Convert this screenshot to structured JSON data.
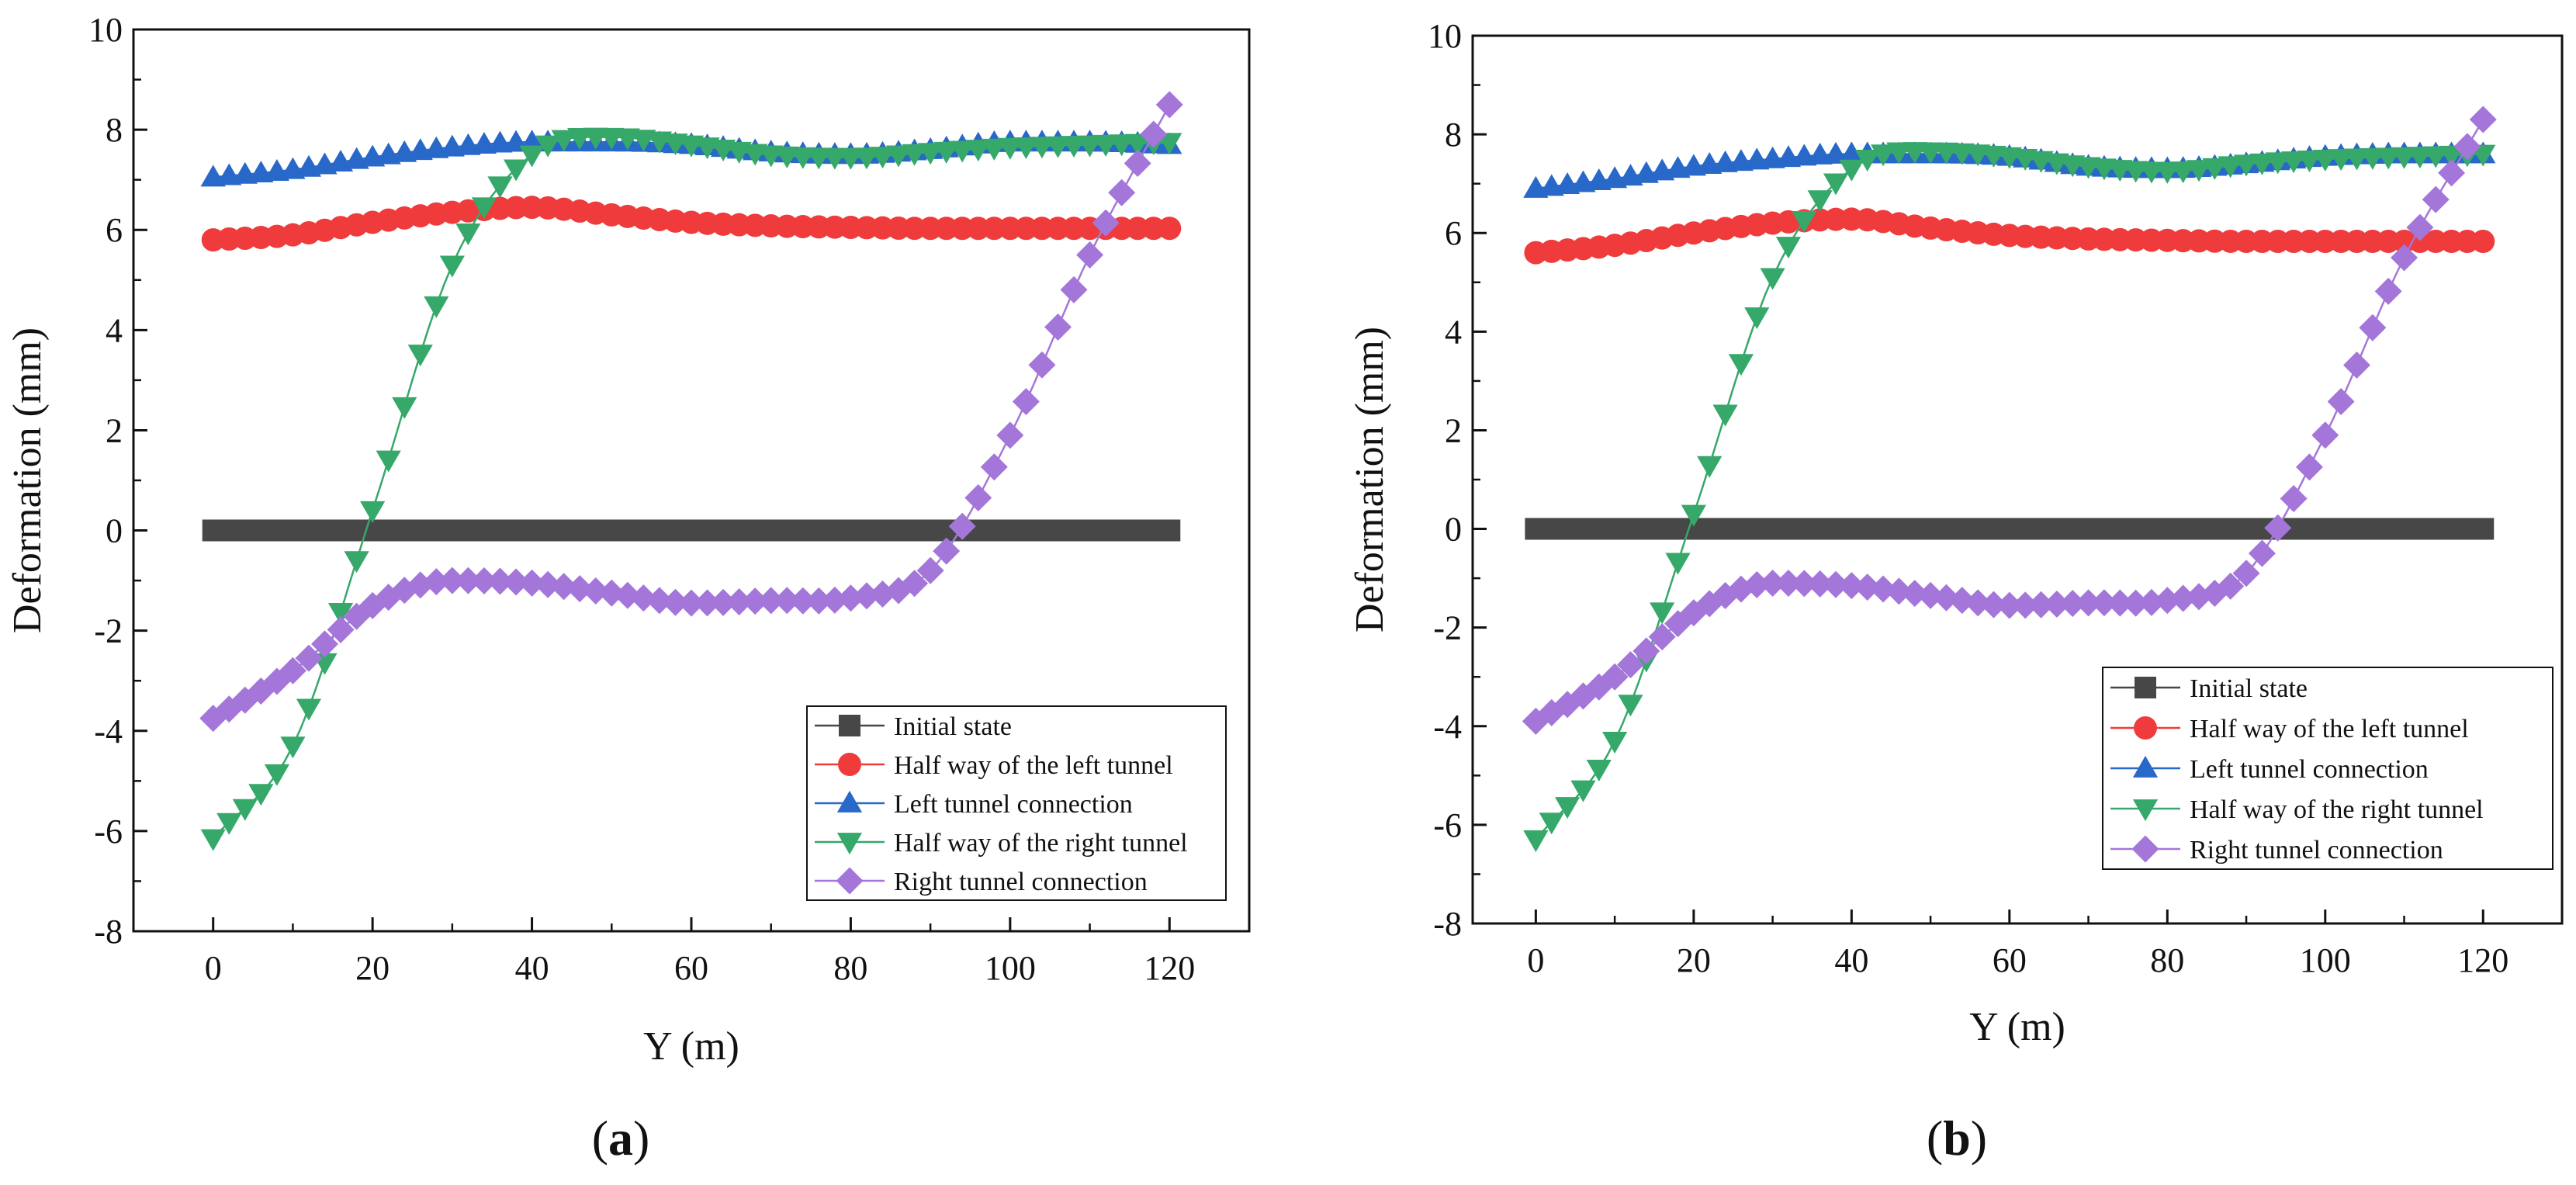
{
  "colors": {
    "initial": "#474747",
    "left_half": "#ef3b3b",
    "left_conn": "#2868c8",
    "right_half": "#35a86a",
    "right_conn": "#a476d9",
    "axis": "#111111"
  },
  "chart_data": [
    {
      "panel": "(a)",
      "panel_letter": "a",
      "type": "scatter",
      "title": "",
      "xlabel": "Y (m)",
      "ylabel": "Deformation (mm)",
      "xlim": [
        -10,
        130
      ],
      "ylim": [
        -8,
        10
      ],
      "xticks": [
        0,
        20,
        40,
        60,
        80,
        100,
        120
      ],
      "yticks": [
        -8,
        -6,
        -4,
        -2,
        0,
        2,
        4,
        6,
        8,
        10
      ],
      "legend_position": "bottom-right",
      "x": [
        0,
        10,
        20,
        30,
        40,
        50,
        60,
        70,
        80,
        90,
        100,
        110,
        120
      ],
      "series": [
        {
          "name": "Initial state",
          "marker": "square",
          "color_key": "initial",
          "values": [
            0,
            0,
            0,
            0,
            0,
            0,
            0,
            0,
            0,
            0,
            0,
            0,
            0
          ]
        },
        {
          "name": "Half way of the left tunnel",
          "marker": "circle",
          "color_key": "left_half",
          "values": [
            5.8,
            5.9,
            6.15,
            6.35,
            6.45,
            6.3,
            6.15,
            6.08,
            6.05,
            6.03,
            6.03,
            6.03,
            6.03
          ]
        },
        {
          "name": "Left tunnel connection",
          "marker": "triangle-up",
          "color_key": "left_conn",
          "values": [
            7.05,
            7.2,
            7.45,
            7.65,
            7.75,
            7.75,
            7.7,
            7.55,
            7.5,
            7.6,
            7.75,
            7.75,
            7.7
          ]
        },
        {
          "name": "Half way of the right tunnel",
          "marker": "triangle-down",
          "color_key": "right_half",
          "values": [
            -6.15,
            -4.3,
            0.4,
            5.3,
            7.5,
            7.85,
            7.7,
            7.5,
            7.45,
            7.55,
            7.65,
            7.7,
            7.75
          ]
        },
        {
          "name": "Right tunnel connection",
          "marker": "diamond",
          "color_key": "right_conn",
          "values": [
            -3.75,
            -2.8,
            -1.5,
            -1.0,
            -1.05,
            -1.25,
            -1.45,
            -1.4,
            -1.35,
            -0.8,
            1.9,
            5.5,
            8.5
          ]
        }
      ]
    },
    {
      "panel": "(b)",
      "panel_letter": "b",
      "type": "scatter",
      "title": "",
      "xlabel": "Y (m)",
      "ylabel": "Deformation (mm)",
      "xlim": [
        -8,
        130
      ],
      "ylim": [
        -8,
        10
      ],
      "xticks": [
        0,
        20,
        40,
        60,
        80,
        100,
        120
      ],
      "yticks": [
        -8,
        -6,
        -4,
        -2,
        0,
        2,
        4,
        6,
        8,
        10
      ],
      "legend_position": "bottom-right",
      "x": [
        0,
        10,
        20,
        30,
        40,
        50,
        60,
        70,
        80,
        90,
        100,
        110,
        120
      ],
      "series": [
        {
          "name": "Initial state",
          "marker": "square",
          "color_key": "initial",
          "values": [
            0,
            0,
            0,
            0,
            0,
            0,
            0,
            0,
            0,
            0,
            0,
            0,
            0
          ]
        },
        {
          "name": "Half way of the left tunnel",
          "marker": "circle",
          "color_key": "left_half",
          "values": [
            5.6,
            5.75,
            6.0,
            6.2,
            6.28,
            6.1,
            5.95,
            5.88,
            5.85,
            5.83,
            5.83,
            5.83,
            5.83
          ]
        },
        {
          "name": "Left tunnel connection",
          "marker": "triangle-up",
          "color_key": "left_conn",
          "values": [
            6.9,
            7.1,
            7.35,
            7.5,
            7.6,
            7.6,
            7.55,
            7.35,
            7.3,
            7.4,
            7.55,
            7.6,
            7.6
          ]
        },
        {
          "name": "Half way of the right tunnel",
          "marker": "triangle-down",
          "color_key": "right_half",
          "values": [
            -6.3,
            -4.3,
            0.3,
            5.1,
            7.3,
            7.65,
            7.55,
            7.35,
            7.25,
            7.4,
            7.5,
            7.55,
            7.6
          ]
        },
        {
          "name": "Right tunnel connection",
          "marker": "diamond",
          "color_key": "right_conn",
          "values": [
            -3.9,
            -3.0,
            -1.7,
            -1.1,
            -1.15,
            -1.35,
            -1.55,
            -1.5,
            -1.45,
            -0.9,
            1.9,
            5.5,
            8.3
          ]
        }
      ]
    }
  ]
}
